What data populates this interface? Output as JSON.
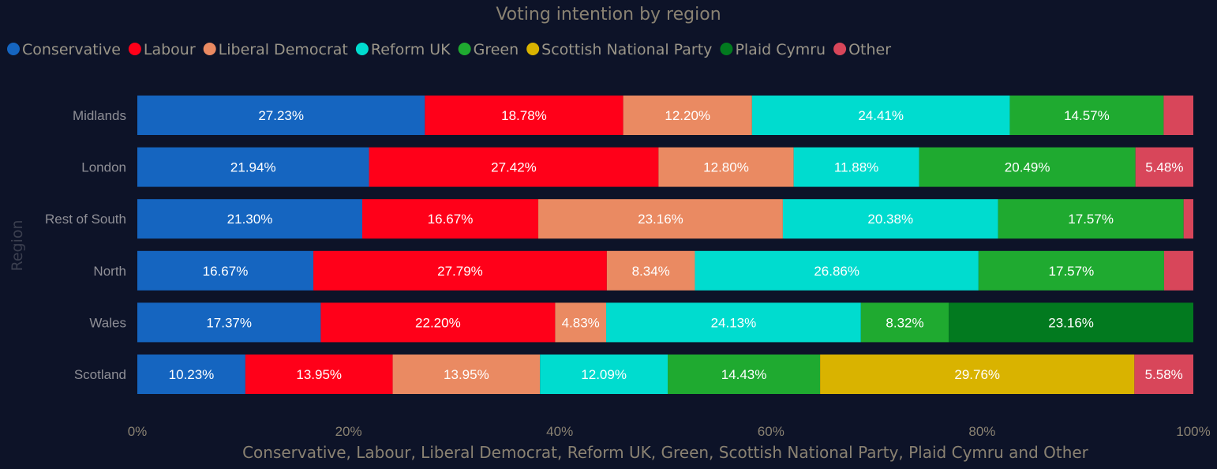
{
  "chart_data": {
    "type": "bar",
    "orientation": "horizontal",
    "stacked": "percent",
    "title": "Voting intention by region",
    "xlabel": "Conservative, Labour, Liberal Democrat, Reform UK, Green, Scottish National Party, Plaid Cymru and Other",
    "ylabel": "Region",
    "legend_position": "top-left",
    "grid": false,
    "xlim": [
      0,
      100
    ],
    "x_ticks": [
      "0%",
      "20%",
      "40%",
      "60%",
      "80%",
      "100%"
    ],
    "categories": [
      "Midlands",
      "London",
      "Rest of South",
      "North",
      "Wales",
      "Scotland"
    ],
    "series": [
      {
        "name": "Conservative",
        "color": "#1565c0",
        "values": [
          27.23,
          21.94,
          21.3,
          16.67,
          17.37,
          10.23
        ],
        "labels": [
          "27.23%",
          "21.94%",
          "21.30%",
          "16.67%",
          "17.37%",
          "10.23%"
        ]
      },
      {
        "name": "Labour",
        "color": "#ff0019",
        "values": [
          18.78,
          27.42,
          16.67,
          27.79,
          22.2,
          13.95
        ],
        "labels": [
          "18.78%",
          "27.42%",
          "16.67%",
          "27.79%",
          "22.20%",
          "13.95%"
        ]
      },
      {
        "name": "Liberal Democrat",
        "color": "#ea8a62",
        "values": [
          12.2,
          12.8,
          23.16,
          8.34,
          4.83,
          13.95
        ],
        "labels": [
          "12.20%",
          "12.80%",
          "23.16%",
          "8.34%",
          "4.83%",
          "13.95%"
        ]
      },
      {
        "name": "Reform UK",
        "color": "#00dccf",
        "values": [
          24.41,
          11.88,
          20.38,
          26.86,
          24.13,
          12.09
        ],
        "labels": [
          "24.41%",
          "11.88%",
          "20.38%",
          "26.86%",
          "24.13%",
          "12.09%"
        ]
      },
      {
        "name": "Green",
        "color": "#1faa30",
        "values": [
          14.57,
          20.49,
          17.57,
          17.57,
          8.32,
          14.43
        ],
        "labels": [
          "14.57%",
          "20.49%",
          "17.57%",
          "17.57%",
          "8.32%",
          "14.43%"
        ]
      },
      {
        "name": "Scottish National Party",
        "color": "#d9b300",
        "values": [
          0,
          0,
          0,
          0,
          0,
          29.76
        ],
        "labels": [
          "",
          "",
          "",
          "",
          "",
          "29.76%"
        ]
      },
      {
        "name": "Plaid Cymru",
        "color": "#027a1f",
        "values": [
          0,
          0,
          0,
          0,
          23.16,
          0
        ],
        "labels": [
          "",
          "",
          "",
          "",
          "23.16%",
          ""
        ]
      },
      {
        "name": "Other",
        "color": "#d8465a",
        "values": [
          2.81,
          5.48,
          0.92,
          2.77,
          0,
          5.58
        ],
        "labels": [
          "",
          "5.48%",
          "",
          "",
          "",
          "5.58%"
        ]
      }
    ]
  }
}
